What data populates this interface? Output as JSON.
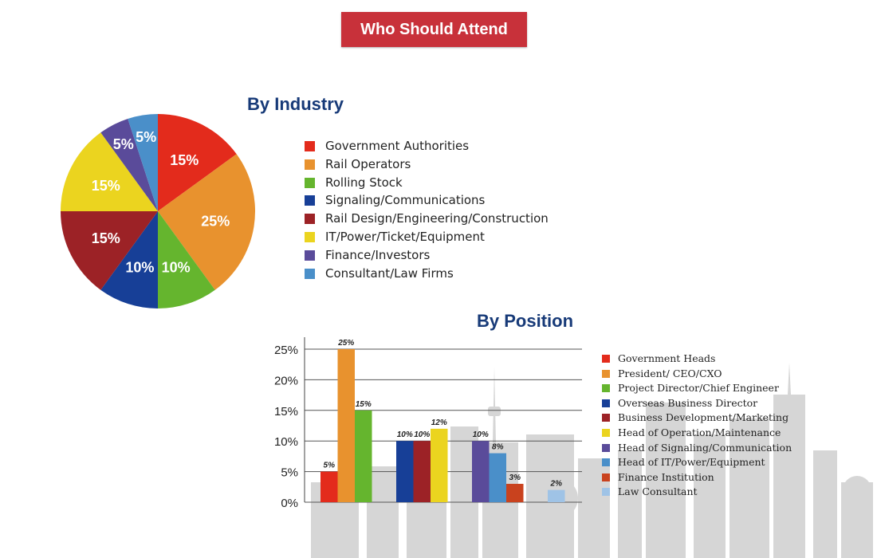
{
  "header": {
    "title": "Who Should Attend"
  },
  "industry": {
    "title": "By Industry"
  },
  "position": {
    "title": "By Position"
  },
  "chart_data": [
    {
      "type": "pie",
      "title": "By Industry",
      "labels": [
        "Government Authorities",
        "Rail Operators",
        "Rolling Stock",
        "Signaling/Communications",
        "Rail Design/Engineering/Construction",
        "IT/Power/Ticket/Equipment",
        "Finance/Investors",
        "Consultant/Law Firms"
      ],
      "values": [
        15,
        25,
        10,
        10,
        15,
        15,
        5,
        5
      ],
      "value_labels": [
        "15%",
        "25%",
        "10%",
        "10%",
        "15%",
        "15%",
        "5%",
        "5%"
      ],
      "colors": [
        "#e32b1c",
        "#e8922e",
        "#65b52e",
        "#173f97",
        "#9c2226",
        "#ebd41f",
        "#5a4b9a",
        "#4a8fc9"
      ],
      "legend": "right"
    },
    {
      "type": "bar",
      "title": "By Position",
      "categories": [
        "Government Heads",
        "President/ CEO/CXO",
        "Project Director/Chief Engineer",
        "Overseas Business Director",
        "Business Development/Marketing",
        "Head of Operation/Maintenance",
        "Head of Signaling/Communication",
        "Head of IT/Power/Equipment",
        "Finance Institution",
        "Law Consultant"
      ],
      "values": [
        5,
        25,
        15,
        10,
        10,
        12,
        10,
        8,
        3,
        2
      ],
      "value_labels": [
        "5%",
        "25%",
        "15%",
        "10%",
        "10%",
        "12%",
        "10%",
        "8%",
        "3%",
        "2%"
      ],
      "groups": [
        [
          0,
          1,
          2
        ],
        [
          3,
          4,
          5
        ],
        [
          6,
          7,
          8
        ],
        [
          9
        ]
      ],
      "colors": [
        "#e32b1c",
        "#e8922e",
        "#65b52e",
        "#173f97",
        "#9c2226",
        "#ebd41f",
        "#5a4b9a",
        "#4a8fc9",
        "#c9421e",
        "#9fc3e6"
      ],
      "yticks": [
        "0%",
        "5%",
        "10%",
        "15%",
        "20%",
        "25%"
      ],
      "ylim": [
        0,
        25
      ],
      "grid": true,
      "legend": "right"
    }
  ]
}
